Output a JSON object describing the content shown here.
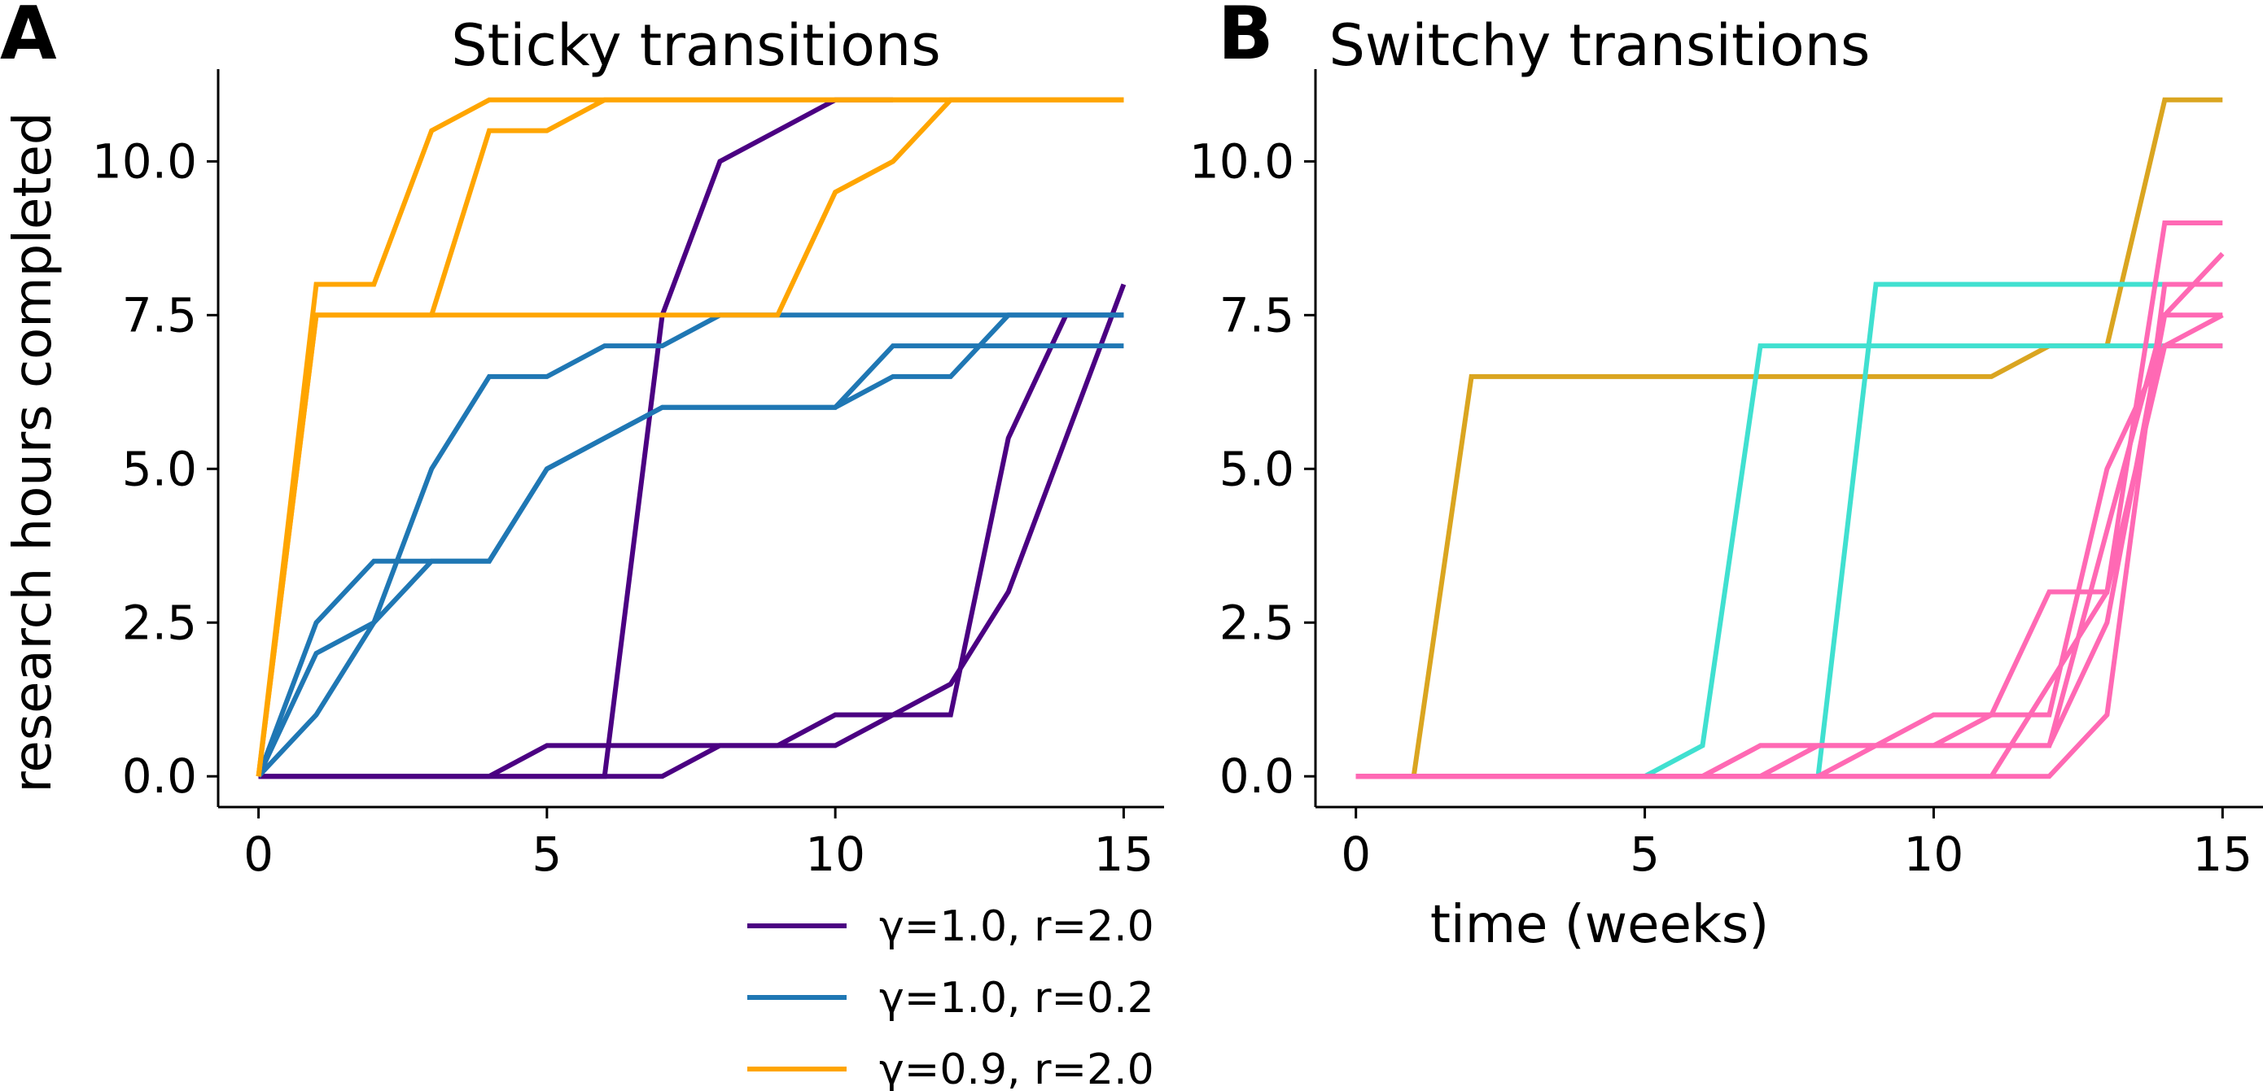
{
  "colors": {
    "gamma1_r2": "#4b0082",
    "gamma1_r02": "#1f77b4",
    "gamma09_r2": "#ffa500",
    "switchy_gold": "#daa520",
    "switchy_cyan": "#40e0d0",
    "switchy_pink": "#ff69b4"
  },
  "legend": [
    {
      "label": "γ=1.0, r=2.0",
      "color_key": "gamma1_r2"
    },
    {
      "label": "γ=1.0, r=0.2",
      "color_key": "gamma1_r02"
    },
    {
      "label": "γ=0.9, r=2.0",
      "color_key": "gamma09_r2"
    }
  ],
  "shared": {
    "ylabel": "research hours completed",
    "xlabel": "time (weeks)"
  },
  "chart_data": [
    {
      "panel": "A",
      "type": "line",
      "title": "Sticky transitions",
      "xlim": [
        -0.7,
        15.7
      ],
      "ylim": [
        -0.5,
        11.5
      ],
      "xticks": [
        0,
        5,
        10,
        15
      ],
      "xtick_labels": [
        "0",
        "5",
        "10",
        "15"
      ],
      "yticks": [
        0,
        2.5,
        5,
        7.5,
        10
      ],
      "ytick_labels": [
        "0.0",
        "2.5",
        "5.0",
        "7.5",
        "10.0"
      ],
      "series": [
        {
          "color_key": "gamma1_r2",
          "x": [
            0,
            1,
            2,
            3,
            4,
            5,
            6,
            7,
            8,
            9,
            10,
            11
          ],
          "y": [
            0,
            0,
            0,
            0,
            0,
            0,
            0,
            7.5,
            10,
            10.5,
            11,
            11
          ]
        },
        {
          "color_key": "gamma1_r2",
          "x": [
            0,
            1,
            2,
            3,
            4,
            5,
            6,
            7,
            8,
            9,
            10,
            11,
            12,
            13,
            14,
            15
          ],
          "y": [
            0,
            0,
            0,
            0,
            0,
            0.5,
            0.5,
            0.5,
            0.5,
            0.5,
            0.5,
            1,
            1,
            5.5,
            7.5,
            7.5
          ]
        },
        {
          "color_key": "gamma1_r2",
          "x": [
            0,
            1,
            2,
            3,
            4,
            5,
            6,
            7,
            8,
            9,
            10,
            11,
            12,
            13,
            14,
            15
          ],
          "y": [
            0,
            0,
            0,
            0,
            0,
            0,
            0,
            0,
            0.5,
            0.5,
            1,
            1,
            1.5,
            3,
            5.5,
            8
          ]
        },
        {
          "color_key": "gamma1_r02",
          "x": [
            0,
            1,
            2,
            3,
            4,
            5,
            6,
            7,
            8,
            9,
            10,
            11,
            12,
            13,
            14,
            15
          ],
          "y": [
            0,
            2.5,
            3.5,
            3.5,
            3.5,
            5,
            5.5,
            6,
            6,
            6,
            6,
            7,
            7,
            7,
            7,
            7
          ]
        },
        {
          "color_key": "gamma1_r02",
          "x": [
            0,
            1,
            2,
            3,
            4,
            5,
            6,
            7,
            8,
            9,
            10,
            11,
            12,
            13,
            14,
            15
          ],
          "y": [
            0,
            1,
            2.5,
            5,
            6.5,
            6.5,
            7,
            7,
            7.5,
            7.5,
            7.5,
            7.5,
            7.5,
            7.5,
            7.5,
            7.5
          ]
        },
        {
          "color_key": "gamma1_r02",
          "x": [
            0,
            1,
            2,
            3,
            4,
            5,
            6,
            7,
            8,
            9,
            10,
            11,
            12,
            13,
            14,
            15
          ],
          "y": [
            0,
            2,
            2.5,
            3.5,
            3.5,
            5,
            5.5,
            6,
            6,
            6,
            6,
            6.5,
            6.5,
            7.5,
            7.5,
            7.5
          ]
        },
        {
          "color_key": "gamma09_r2",
          "x": [
            0,
            1,
            2,
            3,
            4,
            5,
            6,
            7,
            8,
            9,
            10,
            11,
            12,
            13,
            14,
            15
          ],
          "y": [
            0,
            8,
            8,
            10.5,
            11,
            11,
            11,
            11,
            11,
            11,
            11,
            11,
            11,
            11,
            11,
            11
          ]
        },
        {
          "color_key": "gamma09_r2",
          "x": [
            0,
            1,
            2,
            3,
            4,
            5,
            6,
            7,
            8,
            9,
            10,
            11,
            12,
            13,
            14,
            15
          ],
          "y": [
            0,
            7.5,
            7.5,
            7.5,
            10.5,
            10.5,
            11,
            11,
            11,
            11,
            11,
            11,
            11,
            11,
            11,
            11
          ]
        },
        {
          "color_key": "gamma09_r2",
          "x": [
            0,
            1,
            2,
            3,
            4,
            5,
            6,
            7,
            8,
            9,
            10,
            11,
            12,
            13,
            14,
            15
          ],
          "y": [
            0,
            7.5,
            7.5,
            7.5,
            7.5,
            7.5,
            7.5,
            7.5,
            7.5,
            7.5,
            9.5,
            10,
            11,
            11,
            11,
            11
          ]
        }
      ]
    },
    {
      "panel": "B",
      "type": "line",
      "title": "Switchy transitions",
      "xlim": [
        -0.7,
        15.7
      ],
      "ylim": [
        -0.5,
        11.5
      ],
      "xticks": [
        0,
        5,
        10,
        15
      ],
      "xtick_labels": [
        "0",
        "5",
        "10",
        "15"
      ],
      "yticks": [
        0,
        2.5,
        5,
        7.5,
        10
      ],
      "ytick_labels": [
        "0.0",
        "2.5",
        "5.0",
        "7.5",
        "10.0"
      ],
      "series": [
        {
          "color_key": "switchy_gold",
          "x": [
            0,
            1,
            2,
            3,
            4,
            5,
            6,
            7,
            8,
            9,
            10,
            11,
            12,
            13,
            14,
            15
          ],
          "y": [
            0,
            0,
            6.5,
            6.5,
            6.5,
            6.5,
            6.5,
            6.5,
            6.5,
            6.5,
            6.5,
            6.5,
            7,
            7,
            11,
            11
          ]
        },
        {
          "color_key": "switchy_cyan",
          "x": [
            0,
            1,
            2,
            3,
            4,
            5,
            6,
            7,
            8,
            9,
            10,
            11,
            12,
            13,
            14,
            15
          ],
          "y": [
            0,
            0,
            0,
            0,
            0,
            0,
            0.5,
            7,
            7,
            7,
            7,
            7,
            7,
            7,
            7,
            7
          ]
        },
        {
          "color_key": "switchy_cyan",
          "x": [
            0,
            1,
            2,
            3,
            4,
            5,
            6,
            7,
            8,
            9,
            10,
            11,
            12,
            13,
            14,
            15
          ],
          "y": [
            0,
            0,
            0,
            0,
            0,
            0,
            0,
            0,
            0,
            8,
            8,
            8,
            8,
            8,
            8,
            8
          ]
        },
        {
          "color_key": "switchy_pink",
          "x": [
            0,
            1,
            2,
            3,
            4,
            5,
            6,
            7,
            8,
            9,
            10,
            11,
            12,
            13,
            14,
            15
          ],
          "y": [
            0,
            0,
            0,
            0,
            0,
            0,
            0,
            0,
            0.5,
            0.5,
            1,
            1,
            3,
            3,
            9,
            9
          ]
        },
        {
          "color_key": "switchy_pink",
          "x": [
            0,
            1,
            2,
            3,
            4,
            5,
            6,
            7,
            8,
            9,
            10,
            11,
            12,
            13,
            14,
            15
          ],
          "y": [
            0,
            0,
            0,
            0,
            0,
            0,
            0,
            0.5,
            0.5,
            0.5,
            0.5,
            0.5,
            0.5,
            2.5,
            7.5,
            8.5
          ]
        },
        {
          "color_key": "switchy_pink",
          "x": [
            0,
            1,
            2,
            3,
            4,
            5,
            6,
            7,
            8,
            9,
            10,
            11,
            12,
            13,
            14,
            15
          ],
          "y": [
            0,
            0,
            0,
            0,
            0,
            0,
            0,
            0,
            0,
            0.5,
            0.5,
            1,
            1,
            5,
            7,
            7.5
          ]
        },
        {
          "color_key": "switchy_pink",
          "x": [
            0,
            1,
            2,
            3,
            4,
            5,
            6,
            7,
            8,
            9,
            10,
            11,
            12,
            13,
            14,
            15
          ],
          "y": [
            0,
            0,
            0,
            0,
            0,
            0,
            0,
            0,
            0,
            0,
            0,
            0,
            0,
            1,
            8,
            8
          ]
        },
        {
          "color_key": "switchy_pink",
          "x": [
            0,
            1,
            2,
            3,
            4,
            5,
            6,
            7,
            8,
            9,
            10,
            11,
            12,
            13,
            14,
            15
          ],
          "y": [
            0,
            0,
            0,
            0,
            0,
            0,
            0,
            0,
            0,
            0,
            0,
            0,
            1.5,
            3,
            7,
            7
          ]
        },
        {
          "color_key": "switchy_pink",
          "x": [
            0,
            1,
            2,
            3,
            4,
            5,
            6,
            7,
            8,
            9,
            10,
            11,
            12,
            13,
            14,
            15
          ],
          "y": [
            0,
            0,
            0,
            0,
            0,
            0,
            0,
            0.5,
            0.5,
            0.5,
            0.5,
            0.5,
            0.5,
            4,
            7.5,
            7.5
          ]
        }
      ]
    }
  ]
}
